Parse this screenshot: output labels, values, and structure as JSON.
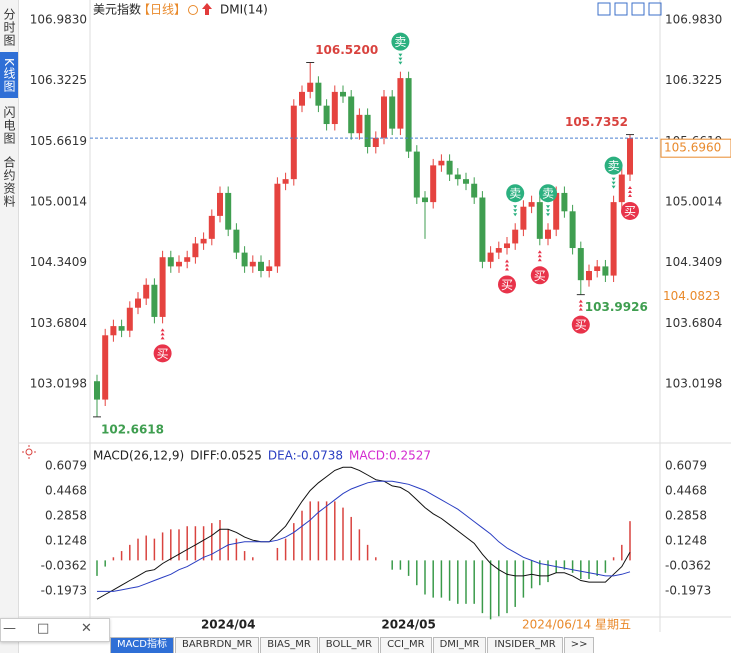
{
  "chart_data": [
    {
      "type": "candlestick",
      "title": "美元指数",
      "period": "【日线】",
      "indicator": "DMI(14)",
      "categories": [
        null,
        null,
        null,
        null,
        null,
        null,
        null,
        null,
        null,
        null,
        null,
        null,
        null,
        null,
        null,
        null,
        "2024/04",
        null,
        null,
        null,
        null,
        null,
        null,
        null,
        null,
        null,
        null,
        null,
        null,
        null,
        null,
        null,
        null,
        null,
        null,
        null,
        null,
        null,
        "2024/05",
        null,
        null,
        null,
        null,
        null,
        null,
        null,
        null,
        null,
        null,
        null,
        null,
        null,
        null,
        null,
        null,
        null,
        null,
        null,
        null,
        null,
        null,
        null,
        null,
        null,
        null,
        null
      ],
      "open": [
        103.05,
        102.85,
        103.55,
        103.65,
        103.6,
        103.85,
        103.95,
        104.1,
        103.75,
        104.4,
        104.3,
        104.35,
        104.4,
        104.55,
        104.6,
        104.85,
        105.1,
        104.7,
        104.45,
        104.3,
        104.35,
        104.25,
        104.3,
        105.2,
        105.25,
        106.05,
        106.2,
        106.3,
        106.05,
        105.85,
        106.2,
        106.15,
        105.75,
        105.95,
        105.6,
        105.7,
        106.15,
        105.8,
        106.35,
        105.55,
        105.05,
        105.0,
        105.4,
        105.45,
        105.3,
        105.25,
        105.2,
        105.05,
        104.35,
        104.45,
        104.5,
        104.55,
        104.7,
        104.95,
        105.0,
        104.6,
        104.7,
        105.1,
        104.9,
        104.5,
        104.15,
        104.25,
        104.3,
        104.2,
        105.0,
        105.3
      ],
      "high": [
        103.12,
        103.62,
        103.72,
        103.72,
        103.92,
        104.02,
        104.17,
        104.17,
        104.47,
        104.47,
        104.42,
        104.47,
        104.62,
        104.67,
        104.92,
        105.17,
        105.17,
        104.77,
        104.52,
        104.42,
        104.42,
        104.37,
        105.27,
        105.32,
        106.12,
        106.27,
        106.52,
        106.37,
        106.12,
        106.27,
        106.27,
        106.22,
        106.02,
        106.02,
        105.77,
        106.22,
        106.22,
        106.42,
        106.42,
        105.62,
        105.12,
        105.47,
        105.52,
        105.52,
        105.37,
        105.32,
        105.27,
        105.12,
        104.52,
        104.57,
        104.62,
        104.77,
        105.02,
        105.07,
        105.07,
        104.77,
        105.17,
        105.17,
        104.97,
        104.57,
        104.32,
        104.37,
        104.37,
        105.07,
        105.37,
        105.7352
      ],
      "low": [
        102.6618,
        102.78,
        103.48,
        103.53,
        103.53,
        103.78,
        103.88,
        103.68,
        103.68,
        104.23,
        104.23,
        104.28,
        104.33,
        104.48,
        104.53,
        104.78,
        104.63,
        104.38,
        104.23,
        104.23,
        104.18,
        104.18,
        104.23,
        105.13,
        105.18,
        105.98,
        106.13,
        105.98,
        105.78,
        105.78,
        106.08,
        105.68,
        105.68,
        105.53,
        105.53,
        105.63,
        105.73,
        105.73,
        105.48,
        104.98,
        104.6,
        104.93,
        105.33,
        105.23,
        105.18,
        105.13,
        104.98,
        104.28,
        104.28,
        104.38,
        104.43,
        104.48,
        104.63,
        104.88,
        104.53,
        104.53,
        104.63,
        104.83,
        104.43,
        103.9926,
        104.08,
        104.18,
        104.13,
        104.13,
        104.93,
        105.23
      ],
      "close": [
        102.85,
        103.55,
        103.65,
        103.6,
        103.85,
        103.95,
        104.1,
        103.75,
        104.4,
        104.3,
        104.35,
        104.4,
        104.55,
        104.6,
        104.85,
        105.1,
        104.7,
        104.45,
        104.3,
        104.35,
        104.25,
        104.3,
        105.2,
        105.25,
        106.05,
        106.2,
        106.3,
        106.05,
        105.85,
        106.2,
        106.15,
        105.75,
        105.95,
        105.6,
        105.7,
        106.15,
        105.8,
        106.35,
        105.55,
        105.05,
        105.0,
        105.4,
        105.45,
        105.3,
        105.25,
        105.2,
        105.05,
        104.35,
        104.45,
        104.5,
        104.55,
        104.7,
        104.95,
        105.0,
        104.6,
        104.7,
        105.1,
        104.9,
        104.5,
        104.15,
        104.25,
        104.3,
        104.2,
        105.0,
        105.3,
        105.696
      ],
      "up_color": "#e5433f",
      "down_color": "#3f9e50",
      "ylim": [
        102.41,
        107.146
      ],
      "yticks": [
        {
          "value": 106.983,
          "label": "106.9830"
        },
        106.3225,
        105.6619,
        105.0014,
        104.3409,
        103.6804,
        103.0198
      ],
      "annotations": [
        {
          "label": "106.5200",
          "value": 106.52,
          "kind": "high"
        },
        {
          "label": "102.6618",
          "value": 102.6618,
          "kind": "low"
        },
        {
          "label": "105.7352",
          "value": 105.7352,
          "kind": "high"
        },
        {
          "label": "103.9926",
          "value": 103.9926,
          "kind": "low"
        }
      ],
      "price_markers": [
        {
          "value": 105.696,
          "label": "105.6960"
        },
        {
          "value": 104.0823,
          "label": "104.0823"
        }
      ],
      "signals": [
        null,
        null,
        null,
        null,
        null,
        null,
        null,
        null,
        "买",
        null,
        null,
        null,
        null,
        null,
        null,
        null,
        null,
        null,
        null,
        null,
        null,
        null,
        null,
        null,
        null,
        null,
        null,
        null,
        null,
        null,
        null,
        null,
        null,
        null,
        null,
        null,
        null,
        "卖",
        null,
        null,
        null,
        null,
        null,
        null,
        null,
        null,
        null,
        null,
        null,
        null,
        "买",
        "卖",
        null,
        null,
        "买",
        "卖",
        null,
        null,
        null,
        "买",
        null,
        null,
        null,
        "卖",
        null,
        "买"
      ],
      "signal_colors": {
        "买": "#e8334a",
        "卖": "#2bb07f"
      },
      "date_label": "2024/06/14 星期五"
    },
    {
      "type": "macd",
      "legend": [
        "MACD(26,12,9)",
        "DIFF:0.0525",
        "DEA:-0.0738",
        "MACD:0.2527"
      ],
      "legend_colors": [
        "#222222",
        "#222222",
        "#2a3ec2",
        "#d32ad0"
      ],
      "diff": {
        "color": "#111111",
        "values": [
          -0.25,
          -0.22,
          -0.19,
          -0.16,
          -0.13,
          -0.1,
          -0.07,
          -0.06,
          -0.02,
          0.01,
          0.04,
          0.07,
          0.1,
          0.13,
          0.16,
          0.2,
          0.2,
          0.18,
          0.15,
          0.13,
          0.12,
          0.12,
          0.17,
          0.22,
          0.3,
          0.38,
          0.45,
          0.5,
          0.54,
          0.58,
          0.6,
          0.6,
          0.58,
          0.55,
          0.52,
          0.51,
          0.48,
          0.47,
          0.44,
          0.39,
          0.34,
          0.3,
          0.27,
          0.23,
          0.19,
          0.15,
          0.11,
          0.04,
          -0.02,
          -0.06,
          -0.09,
          -0.1,
          -0.1,
          -0.09,
          -0.1,
          -0.1,
          -0.08,
          -0.08,
          -0.1,
          -0.13,
          -0.14,
          -0.14,
          -0.14,
          -0.09,
          -0.04,
          0.0525
        ]
      },
      "dea": {
        "color": "#2a3ec2",
        "values": [
          -0.2,
          -0.2,
          -0.2,
          -0.19,
          -0.18,
          -0.17,
          -0.15,
          -0.13,
          -0.11,
          -0.09,
          -0.06,
          -0.04,
          -0.01,
          0.02,
          0.04,
          0.07,
          0.1,
          0.11,
          0.12,
          0.12,
          0.12,
          0.12,
          0.13,
          0.15,
          0.18,
          0.22,
          0.26,
          0.31,
          0.35,
          0.39,
          0.43,
          0.46,
          0.48,
          0.5,
          0.51,
          0.51,
          0.51,
          0.5,
          0.49,
          0.47,
          0.45,
          0.42,
          0.39,
          0.36,
          0.33,
          0.29,
          0.25,
          0.21,
          0.17,
          0.12,
          0.08,
          0.05,
          0.02,
          0.0,
          -0.02,
          -0.03,
          -0.04,
          -0.05,
          -0.06,
          -0.07,
          -0.08,
          -0.09,
          -0.1,
          -0.1,
          -0.09,
          -0.0738
        ]
      },
      "macd": {
        "up_color": "#d9433f",
        "down_color": "#3a9a4a",
        "values": [
          -0.1,
          -0.04,
          0.02,
          0.06,
          0.1,
          0.14,
          0.16,
          0.14,
          0.18,
          0.2,
          0.2,
          0.22,
          0.22,
          0.22,
          0.24,
          0.26,
          0.2,
          0.14,
          0.06,
          0.02,
          0.0,
          0.0,
          0.08,
          0.14,
          0.24,
          0.32,
          0.38,
          0.38,
          0.38,
          0.38,
          0.34,
          0.28,
          0.2,
          0.1,
          0.02,
          0.0,
          -0.06,
          -0.06,
          -0.1,
          -0.16,
          -0.22,
          -0.24,
          -0.24,
          -0.26,
          -0.28,
          -0.28,
          -0.28,
          -0.34,
          -0.38,
          -0.36,
          -0.34,
          -0.3,
          -0.24,
          -0.18,
          -0.16,
          -0.14,
          -0.08,
          -0.06,
          -0.08,
          -0.12,
          -0.12,
          -0.1,
          -0.08,
          0.02,
          0.1,
          0.2527
        ]
      },
      "ylim": [
        -0.352,
        0.679
      ],
      "yticks": [
        0.6079,
        0.4468,
        0.2858,
        0.1248,
        -0.0362,
        -0.1973
      ]
    }
  ],
  "sidebar_tabs": [
    "分时图",
    "K线图",
    "闪电图",
    "合约资料"
  ],
  "indicator_tabs": [
    "MACD指标",
    "BARBRDN_MR",
    "BIAS_MR",
    "BOLL_MR",
    "CCI_MR",
    "DMI_MR",
    "INSIDER_MR",
    ">>"
  ]
}
